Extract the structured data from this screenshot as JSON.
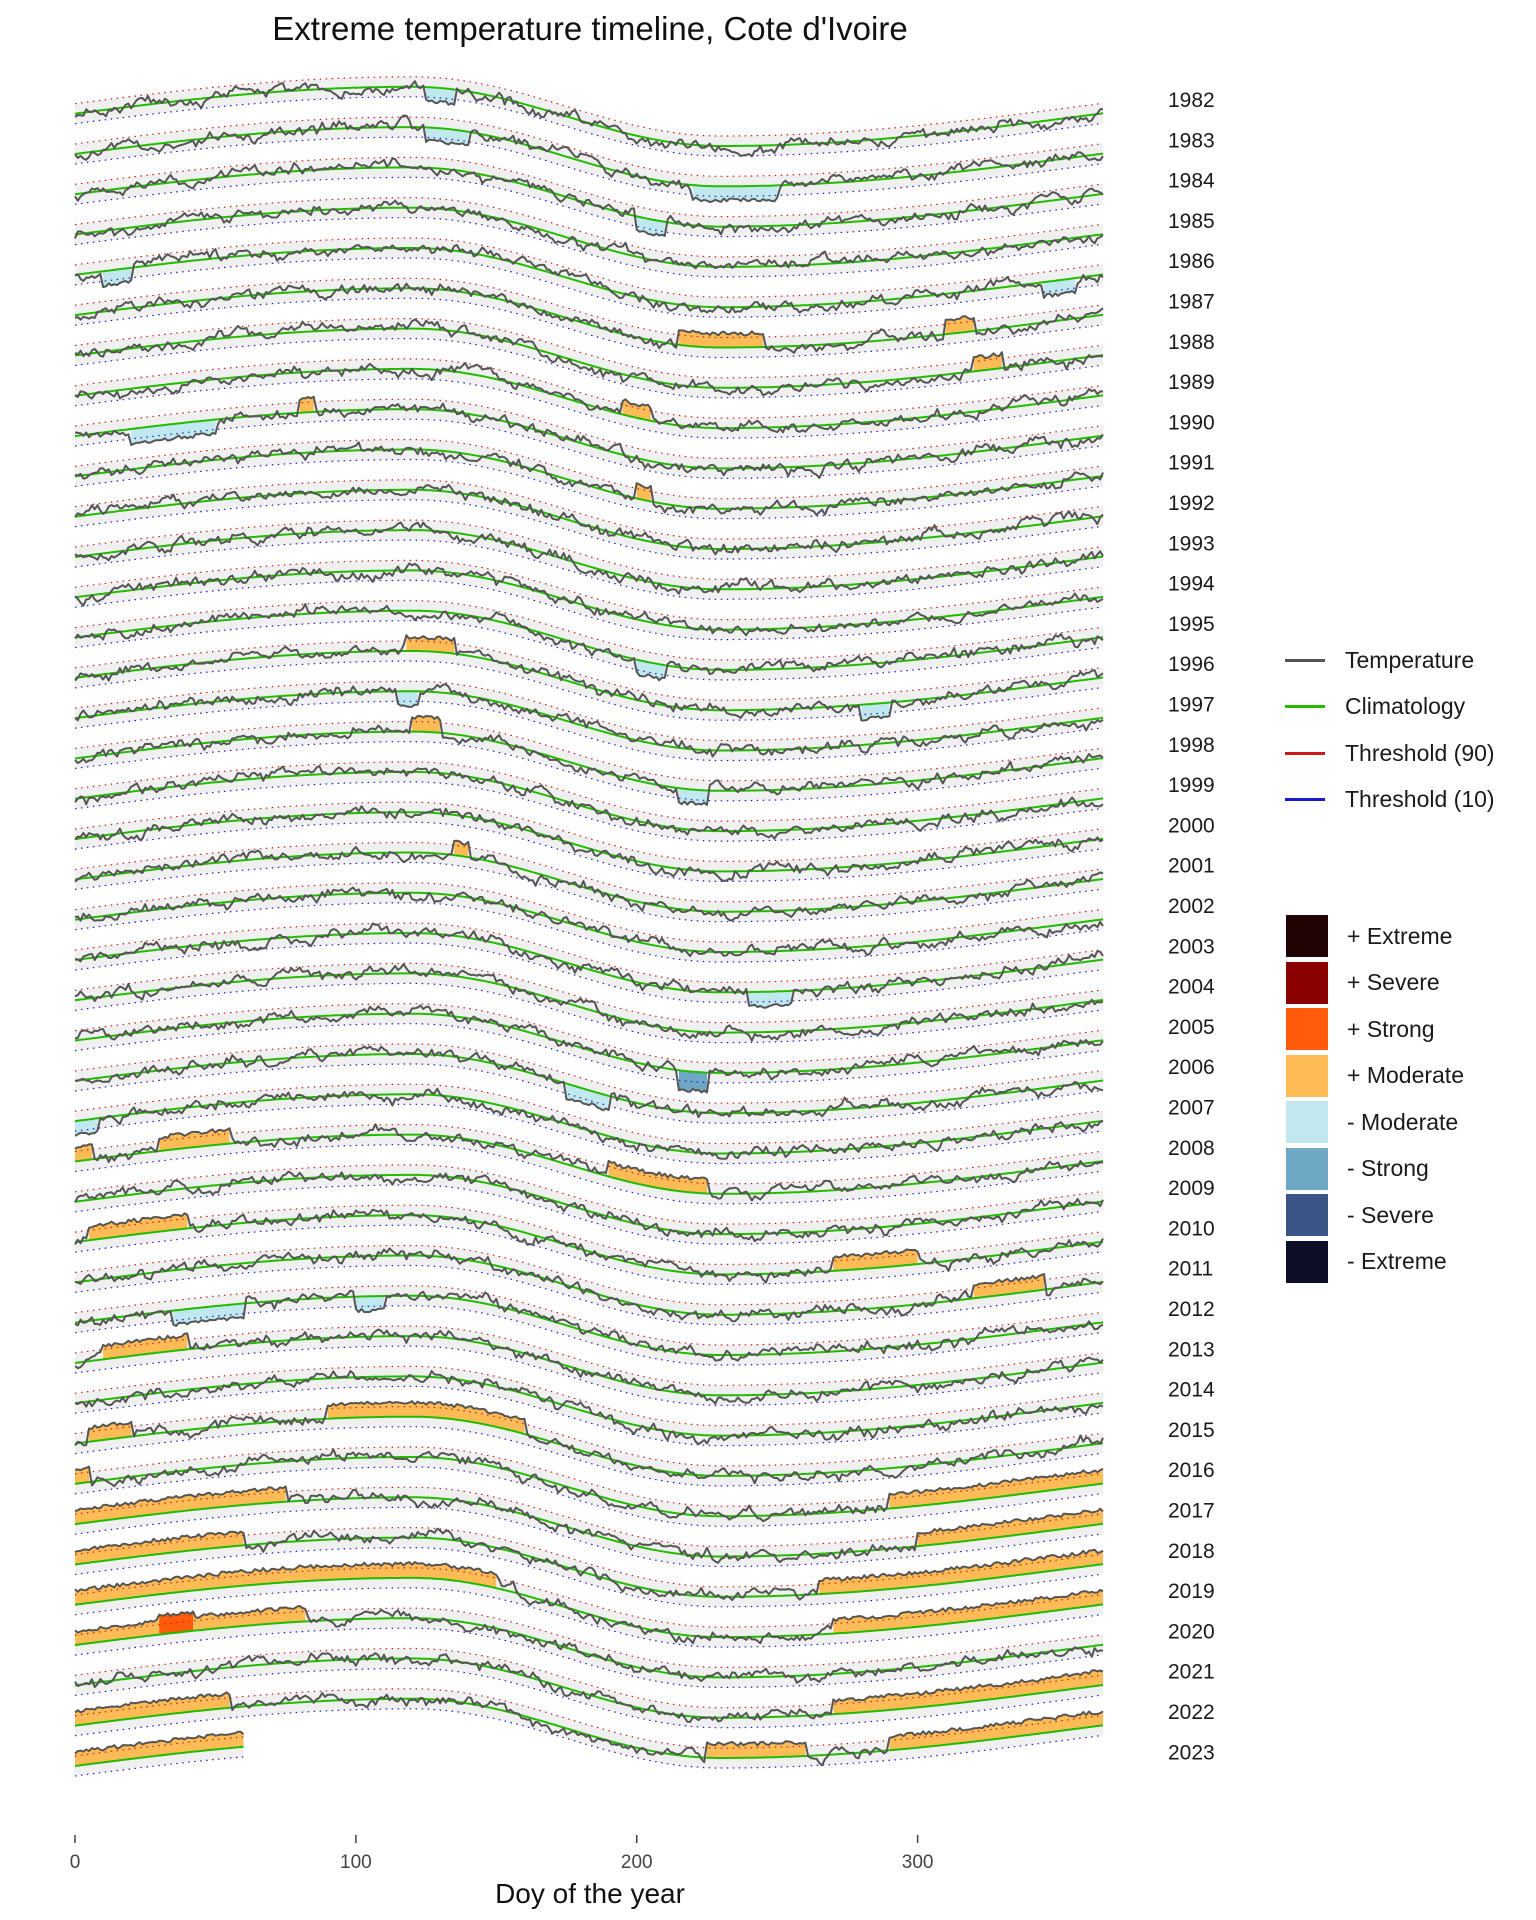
{
  "chart_data": {
    "type": "line",
    "title": "Extreme temperature timeline, Cote d'Ivoire",
    "xlabel": "Doy of the year",
    "ylabel": "",
    "xlim": [
      0,
      366
    ],
    "x_ticks": [
      0,
      100,
      200,
      300
    ],
    "years": [
      "1982",
      "1983",
      "1984",
      "1985",
      "1986",
      "1987",
      "1988",
      "1989",
      "1990",
      "1991",
      "1992",
      "1993",
      "1994",
      "1995",
      "1996",
      "1997",
      "1998",
      "1999",
      "2000",
      "2001",
      "2002",
      "2003",
      "2004",
      "2005",
      "2006",
      "2007",
      "2008",
      "2009",
      "2010",
      "2011",
      "2012",
      "2013",
      "2014",
      "2015",
      "2016",
      "2017",
      "2018",
      "2019",
      "2020",
      "2021",
      "2022",
      "2023"
    ],
    "last_day_of_2023": 60,
    "climatology_shape": {
      "max_day": 120,
      "min_day": 230,
      "max_offset": -0.85,
      "min_offset": 1.0
    },
    "anomaly_events": [
      {
        "year": "1982",
        "from": 125,
        "to": 135,
        "category": "- Moderate"
      },
      {
        "year": "1983",
        "from": 125,
        "to": 140,
        "category": "- Moderate"
      },
      {
        "year": "1983",
        "from": 220,
        "to": 250,
        "category": "- Moderate"
      },
      {
        "year": "1984",
        "from": 200,
        "to": 210,
        "category": "- Moderate"
      },
      {
        "year": "1986",
        "from": 10,
        "to": 20,
        "category": "- Moderate"
      },
      {
        "year": "1986",
        "from": 345,
        "to": 356,
        "category": "- Moderate"
      },
      {
        "year": "1987",
        "from": 215,
        "to": 245,
        "category": "+ Moderate"
      },
      {
        "year": "1987",
        "from": 310,
        "to": 320,
        "category": "+ Moderate"
      },
      {
        "year": "1988",
        "from": 320,
        "to": 330,
        "category": "+ Moderate"
      },
      {
        "year": "1989",
        "from": 195,
        "to": 205,
        "category": "+ Moderate"
      },
      {
        "year": "1990",
        "from": 20,
        "to": 50,
        "category": "- Moderate"
      },
      {
        "year": "1990",
        "from": 80,
        "to": 85,
        "category": "+ Moderate"
      },
      {
        "year": "1991",
        "from": 200,
        "to": 205,
        "category": "+ Moderate"
      },
      {
        "year": "1995",
        "from": 200,
        "to": 210,
        "category": "- Moderate"
      },
      {
        "year": "1996",
        "from": 118,
        "to": 135,
        "category": "+ Moderate"
      },
      {
        "year": "1996",
        "from": 280,
        "to": 290,
        "category": "- Moderate"
      },
      {
        "year": "1997",
        "from": 115,
        "to": 122,
        "category": "- Moderate"
      },
      {
        "year": "1998",
        "from": 120,
        "to": 130,
        "category": "+ Moderate"
      },
      {
        "year": "1998",
        "from": 215,
        "to": 225,
        "category": "- Moderate"
      },
      {
        "year": "2001",
        "from": 135,
        "to": 140,
        "category": "+ Moderate"
      },
      {
        "year": "2003",
        "from": 240,
        "to": 255,
        "category": "- Moderate"
      },
      {
        "year": "2005",
        "from": 215,
        "to": 225,
        "category": "- Strong"
      },
      {
        "year": "2006",
        "from": 175,
        "to": 190,
        "category": "- Moderate"
      },
      {
        "year": "2007",
        "from": 0,
        "to": 8,
        "category": "- Moderate"
      },
      {
        "year": "2008",
        "from": 0,
        "to": 6,
        "category": "+ Moderate"
      },
      {
        "year": "2008",
        "from": 30,
        "to": 55,
        "category": "+ Moderate"
      },
      {
        "year": "2008",
        "from": 190,
        "to": 225,
        "category": "+ Moderate"
      },
      {
        "year": "2010",
        "from": 5,
        "to": 40,
        "category": "+ Moderate"
      },
      {
        "year": "2010",
        "from": 270,
        "to": 300,
        "category": "+ Moderate"
      },
      {
        "year": "2011",
        "from": 320,
        "to": 345,
        "category": "+ Moderate"
      },
      {
        "year": "2012",
        "from": 35,
        "to": 60,
        "category": "- Moderate"
      },
      {
        "year": "2012",
        "from": 100,
        "to": 110,
        "category": "- Moderate"
      },
      {
        "year": "2013",
        "from": 10,
        "to": 40,
        "category": "+ Moderate"
      },
      {
        "year": "2015",
        "from": 90,
        "to": 160,
        "category": "+ Moderate"
      },
      {
        "year": "2015",
        "from": 5,
        "to": 20,
        "category": "+ Moderate"
      },
      {
        "year": "2016",
        "from": 0,
        "to": 5,
        "category": "+ Moderate"
      },
      {
        "year": "2016",
        "from": 290,
        "to": 366,
        "category": "+ Moderate"
      },
      {
        "year": "2017",
        "from": 0,
        "to": 75,
        "category": "+ Moderate"
      },
      {
        "year": "2017",
        "from": 300,
        "to": 366,
        "category": "+ Moderate"
      },
      {
        "year": "2018",
        "from": 0,
        "to": 60,
        "category": "+ Moderate"
      },
      {
        "year": "2018",
        "from": 265,
        "to": 366,
        "category": "+ Moderate"
      },
      {
        "year": "2019",
        "from": 0,
        "to": 150,
        "category": "+ Moderate"
      },
      {
        "year": "2019",
        "from": 270,
        "to": 366,
        "category": "+ Moderate"
      },
      {
        "year": "2020",
        "from": 0,
        "to": 82,
        "category": "+ Moderate"
      },
      {
        "year": "2020",
        "from": 30,
        "to": 42,
        "category": "+ Strong"
      },
      {
        "year": "2021",
        "from": 270,
        "to": 366,
        "category": "+ Moderate"
      },
      {
        "year": "2022",
        "from": 0,
        "to": 55,
        "category": "+ Moderate"
      },
      {
        "year": "2022",
        "from": 225,
        "to": 260,
        "category": "+ Moderate"
      },
      {
        "year": "2022",
        "from": 290,
        "to": 366,
        "category": "+ Moderate"
      },
      {
        "year": "2023",
        "from": 0,
        "to": 60,
        "category": "+ Moderate"
      }
    ],
    "legend_lines": [
      {
        "label": "Temperature",
        "color": "#555555"
      },
      {
        "label": "Climatology",
        "color": "#22bb00"
      },
      {
        "label": "Threshold (90)",
        "color": "#cc1a1a"
      },
      {
        "label": "Threshold (10)",
        "color": "#1a1acc"
      }
    ],
    "legend_categories": [
      {
        "label": "+ Extreme",
        "color": "#200404"
      },
      {
        "label": "+ Severe",
        "color": "#8b0000"
      },
      {
        "label": "+ Strong",
        "color": "#ff5b0b"
      },
      {
        "label": "+ Moderate",
        "color": "#ffbb55"
      },
      {
        "label": "- Moderate",
        "color": "#c0e8ee"
      },
      {
        "label": "- Strong",
        "color": "#6fa8c4"
      },
      {
        "label": "- Severe",
        "color": "#3b5686"
      },
      {
        "label": "- Extreme",
        "color": "#0d0d28"
      }
    ],
    "legend_position": "right",
    "grid": false
  }
}
